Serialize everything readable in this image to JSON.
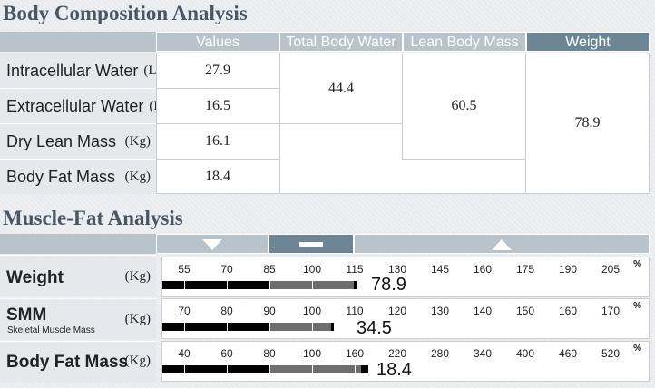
{
  "body_composition": {
    "title": "Body Composition Analysis",
    "headers": {
      "values": "Values",
      "tbw": "Total Body Water",
      "lbm": "Lean Body Mass",
      "weight": "Weight"
    },
    "rows": [
      {
        "label": "Intracellular Water",
        "unit": "(L)",
        "value": "27.9"
      },
      {
        "label": "Extracellular Water",
        "unit": "(L)",
        "value": "16.5"
      },
      {
        "label": "Dry Lean Mass",
        "unit": "(Kg)",
        "value": "16.1"
      },
      {
        "label": "Body Fat Mass",
        "unit": "(Kg)",
        "value": "18.4"
      }
    ],
    "tbw_value": "44.4",
    "lbm_value": "60.5",
    "weight_value": "78.9"
  },
  "muscle_fat": {
    "title": "Muscle-Fat Analysis",
    "header_icons": [
      "triangle-down-icon",
      "minus-icon",
      "triangle-up-icon"
    ],
    "pct_symbol": "%",
    "rows": [
      {
        "label": "Weight",
        "sublabel": "",
        "unit": "(Kg)",
        "value": "78.9",
        "ticks": [
          "55",
          "70",
          "85",
          "100",
          "115",
          "130",
          "145",
          "160",
          "175",
          "190",
          "205"
        ],
        "percent_of_normal": 115
      },
      {
        "label": "SMM",
        "sublabel": "Skeletal Muscle Mass",
        "unit": "(Kg)",
        "value": "34.5",
        "ticks": [
          "70",
          "80",
          "90",
          "100",
          "110",
          "120",
          "130",
          "140",
          "150",
          "160",
          "170"
        ],
        "percent_of_normal": 107
      },
      {
        "label": "Body Fat Mass",
        "sublabel": "",
        "unit": "(Kg)",
        "value": "18.4",
        "ticks": [
          "40",
          "60",
          "80",
          "100",
          "160",
          "220",
          "280",
          "340",
          "400",
          "460",
          "520"
        ],
        "percent_of_normal": 165
      }
    ]
  },
  "colors": {
    "header_light": "#b8c3cc",
    "header_dark": "#6e8596",
    "label_bg": "#e6e8ec",
    "bar_black": "#000000",
    "bar_gray": "#6e6e6e",
    "title_text": "#4a5664"
  }
}
